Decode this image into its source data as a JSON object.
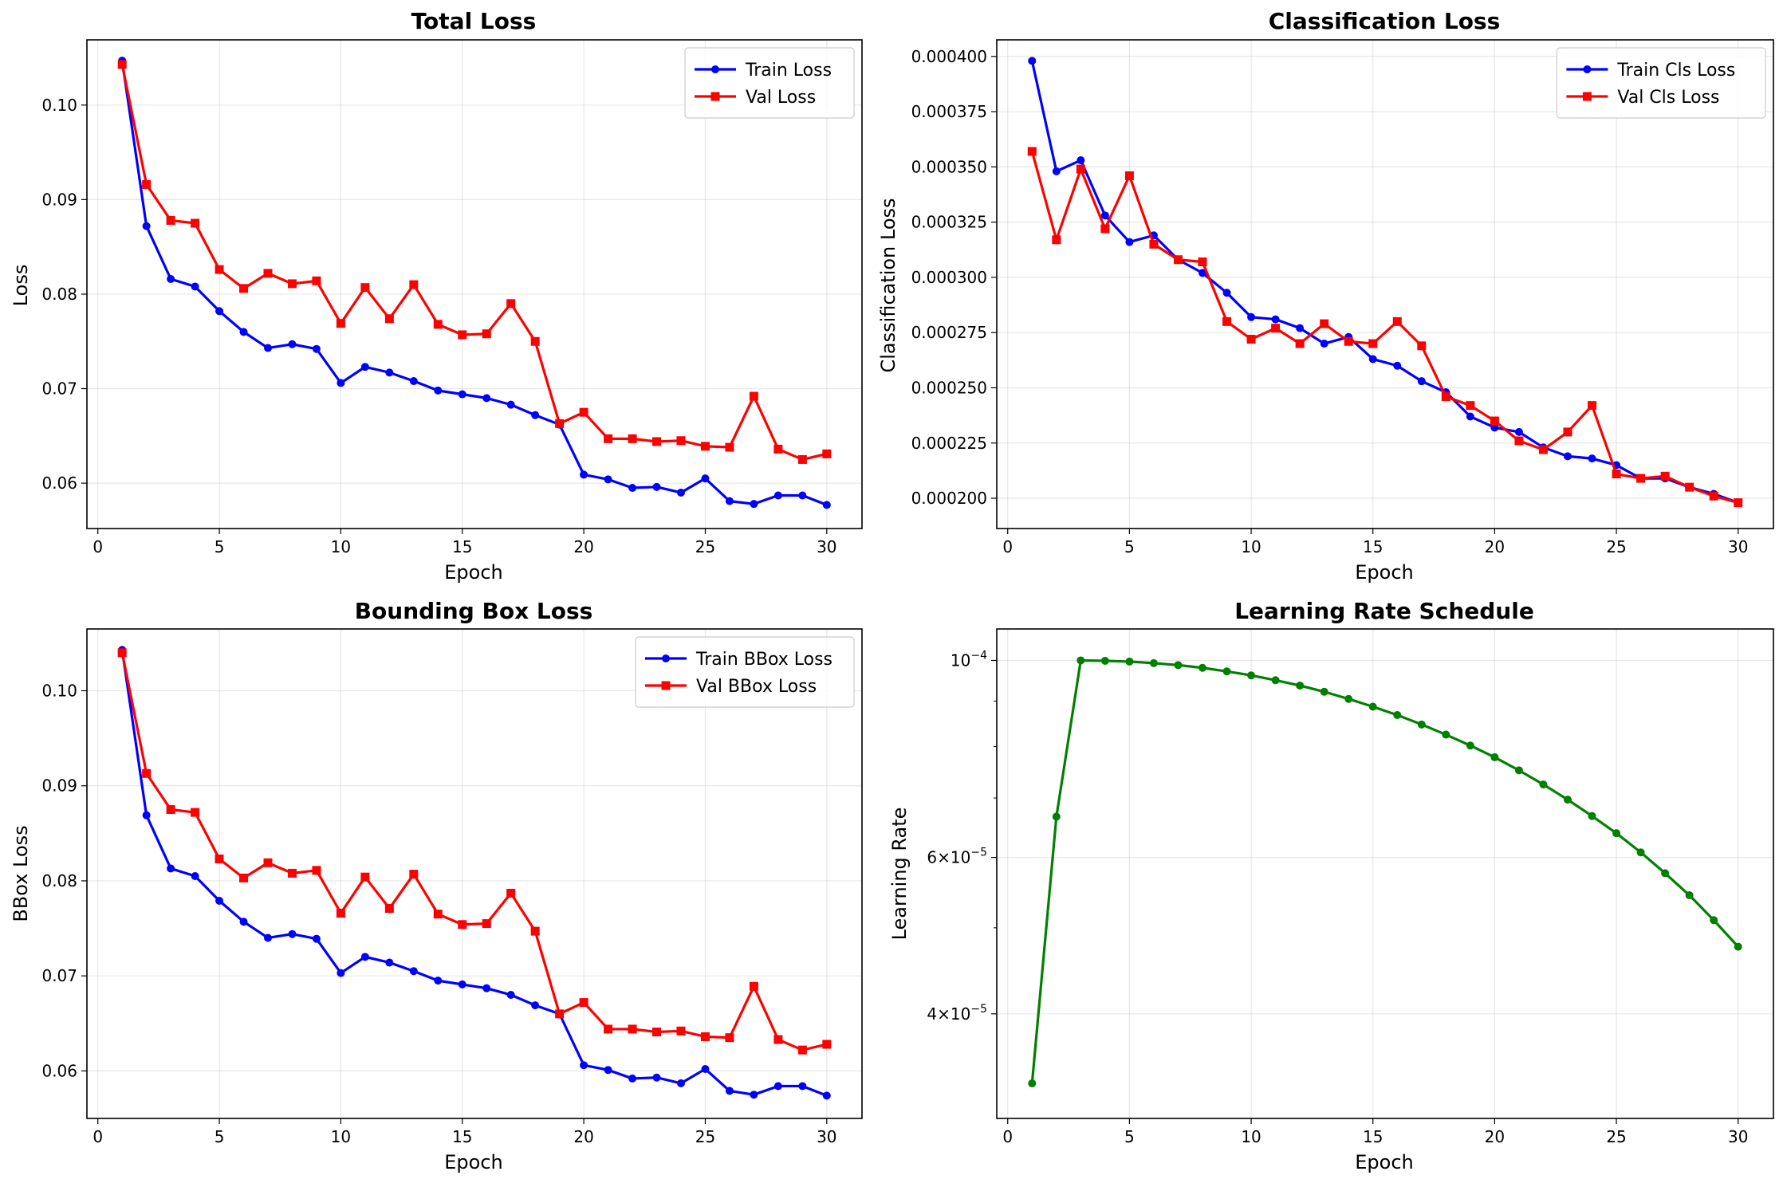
{
  "figure": {
    "background": "#ffffff"
  },
  "chart_data": [
    {
      "type": "line",
      "title": "Total Loss",
      "xlabel": "Epoch",
      "ylabel": "Loss",
      "xlim": [
        -0.45,
        31.45
      ],
      "ylim": [
        0.0552,
        0.1069
      ],
      "xticks": [
        0,
        5,
        10,
        15,
        20,
        25,
        30
      ],
      "yticks": [
        0.06,
        0.07,
        0.08,
        0.09,
        0.1
      ],
      "ytick_labels": [
        "0.06",
        "0.07",
        "0.08",
        "0.09",
        "0.10"
      ],
      "grid": true,
      "legend": "top-right",
      "x": [
        1,
        2,
        3,
        4,
        5,
        6,
        7,
        8,
        9,
        10,
        11,
        12,
        13,
        14,
        15,
        16,
        17,
        18,
        19,
        20,
        21,
        22,
        23,
        24,
        25,
        26,
        27,
        28,
        29,
        30
      ],
      "series": [
        {
          "name": "Train Loss",
          "color": "#0000ff",
          "marker": "circle",
          "values": [
            0.1047,
            0.0872,
            0.0816,
            0.0808,
            0.0782,
            0.076,
            0.0743,
            0.0747,
            0.0742,
            0.0706,
            0.0723,
            0.0717,
            0.0708,
            0.0698,
            0.0694,
            0.069,
            0.0683,
            0.0672,
            0.0662,
            0.0609,
            0.0604,
            0.0595,
            0.0596,
            0.059,
            0.0605,
            0.0581,
            0.0578,
            0.0587,
            0.0587,
            0.0577
          ]
        },
        {
          "name": "Val Loss",
          "color": "#ff0000",
          "marker": "square",
          "values": [
            0.1043,
            0.0916,
            0.0878,
            0.0875,
            0.0826,
            0.0806,
            0.0822,
            0.0811,
            0.0814,
            0.0769,
            0.0807,
            0.0774,
            0.081,
            0.0768,
            0.0757,
            0.0758,
            0.079,
            0.075,
            0.0663,
            0.0675,
            0.0647,
            0.0647,
            0.0644,
            0.0645,
            0.0639,
            0.0638,
            0.0692,
            0.0636,
            0.0625,
            0.0631
          ]
        }
      ]
    },
    {
      "type": "line",
      "title": "Classification Loss",
      "xlabel": "Epoch",
      "ylabel": "Classification Loss",
      "xlim": [
        -0.45,
        31.45
      ],
      "ylim": [
        0.0001863,
        0.0004075
      ],
      "xticks": [
        0,
        5,
        10,
        15,
        20,
        25,
        30
      ],
      "yticks": [
        0.0002,
        0.000225,
        0.00025,
        0.000275,
        0.0003,
        0.000325,
        0.00035,
        0.000375,
        0.0004
      ],
      "ytick_labels": [
        "0.000200",
        "0.000225",
        "0.000250",
        "0.000275",
        "0.000300",
        "0.000325",
        "0.000350",
        "0.000375",
        "0.000400"
      ],
      "grid": true,
      "legend": "top-right",
      "x": [
        1,
        2,
        3,
        4,
        5,
        6,
        7,
        8,
        9,
        10,
        11,
        12,
        13,
        14,
        15,
        16,
        17,
        18,
        19,
        20,
        21,
        22,
        23,
        24,
        25,
        26,
        27,
        28,
        29,
        30
      ],
      "series": [
        {
          "name": "Train Cls Loss",
          "color": "#0000ff",
          "marker": "circle",
          "values": [
            0.000398,
            0.000348,
            0.000353,
            0.000328,
            0.000316,
            0.000319,
            0.000308,
            0.000302,
            0.000293,
            0.000282,
            0.000281,
            0.000277,
            0.00027,
            0.000273,
            0.000263,
            0.00026,
            0.000253,
            0.000248,
            0.000237,
            0.000232,
            0.00023,
            0.000223,
            0.000219,
            0.000218,
            0.000215,
            0.000209,
            0.000209,
            0.000205,
            0.000202,
            0.000198
          ]
        },
        {
          "name": "Val Cls Loss",
          "color": "#ff0000",
          "marker": "square",
          "values": [
            0.000357,
            0.000317,
            0.000349,
            0.000322,
            0.000346,
            0.000315,
            0.000308,
            0.000307,
            0.00028,
            0.000272,
            0.000277,
            0.00027,
            0.000279,
            0.000271,
            0.00027,
            0.00028,
            0.000269,
            0.000246,
            0.000242,
            0.000235,
            0.000226,
            0.000222,
            0.00023,
            0.000242,
            0.000211,
            0.000209,
            0.00021,
            0.000205,
            0.000201,
            0.000198
          ]
        }
      ]
    },
    {
      "type": "line",
      "title": "Bounding Box Loss",
      "xlabel": "Epoch",
      "ylabel": "BBox Loss",
      "xlim": [
        -0.45,
        31.45
      ],
      "ylim": [
        0.055,
        0.1065
      ],
      "xticks": [
        0,
        5,
        10,
        15,
        20,
        25,
        30
      ],
      "yticks": [
        0.06,
        0.07,
        0.08,
        0.09,
        0.1
      ],
      "ytick_labels": [
        "0.06",
        "0.07",
        "0.08",
        "0.09",
        "0.10"
      ],
      "grid": true,
      "legend": "top-right",
      "x": [
        1,
        2,
        3,
        4,
        5,
        6,
        7,
        8,
        9,
        10,
        11,
        12,
        13,
        14,
        15,
        16,
        17,
        18,
        19,
        20,
        21,
        22,
        23,
        24,
        25,
        26,
        27,
        28,
        29,
        30
      ],
      "series": [
        {
          "name": "Train BBox Loss",
          "color": "#0000ff",
          "marker": "circle",
          "values": [
            0.1043,
            0.0869,
            0.0813,
            0.0805,
            0.0779,
            0.0757,
            0.074,
            0.0744,
            0.0739,
            0.0703,
            0.072,
            0.0714,
            0.0705,
            0.0695,
            0.0691,
            0.0687,
            0.068,
            0.0669,
            0.066,
            0.0606,
            0.0601,
            0.0592,
            0.0593,
            0.0587,
            0.0602,
            0.0579,
            0.0575,
            0.0584,
            0.0584,
            0.0574
          ]
        },
        {
          "name": "Val BBox Loss",
          "color": "#ff0000",
          "marker": "square",
          "values": [
            0.104,
            0.0913,
            0.0875,
            0.0872,
            0.0823,
            0.0803,
            0.0819,
            0.0808,
            0.0811,
            0.0766,
            0.0804,
            0.0771,
            0.0807,
            0.0765,
            0.0754,
            0.0755,
            0.0787,
            0.0747,
            0.066,
            0.0672,
            0.0644,
            0.0644,
            0.0641,
            0.0642,
            0.0636,
            0.0635,
            0.0689,
            0.0633,
            0.0622,
            0.0628
          ]
        }
      ]
    },
    {
      "type": "line",
      "title": "Learning Rate Schedule",
      "xlabel": "Epoch",
      "ylabel": "Learning Rate",
      "yscale": "log",
      "xlim": [
        -0.45,
        31.45
      ],
      "ylim": [
        3.05e-05,
        0.0001085
      ],
      "xticks": [
        0,
        5,
        10,
        15,
        20,
        25,
        30
      ],
      "yticks": [
        4e-05,
        6e-05,
        0.0001
      ],
      "ytick_labels": [
        [
          "4",
          "−5"
        ],
        [
          "6",
          "−5"
        ],
        [
          "",
          "−4"
        ]
      ],
      "yminor": [
        3e-05,
        5e-05,
        7e-05,
        8e-05,
        9e-05
      ],
      "grid": true,
      "x": [
        1,
        2,
        3,
        4,
        5,
        6,
        7,
        8,
        9,
        10,
        11,
        12,
        13,
        14,
        15,
        16,
        17,
        18,
        19,
        20,
        21,
        22,
        23,
        24,
        25,
        26,
        27,
        28,
        29,
        30
      ],
      "series": [
        {
          "color": "#008000",
          "marker": "circle",
          "values": [
            3.34e-05,
            6.67e-05,
            0.0001,
            9.99e-05,
            9.97e-05,
            9.93e-05,
            9.88e-05,
            9.81e-05,
            9.72e-05,
            9.62e-05,
            9.5e-05,
            9.37e-05,
            9.22e-05,
            9.05e-05,
            8.87e-05,
            8.68e-05,
            8.47e-05,
            8.25e-05,
            8.02e-05,
            7.78e-05,
            7.52e-05,
            7.25e-05,
            6.97e-05,
            6.68e-05,
            6.39e-05,
            6.08e-05,
            5.76e-05,
            5.44e-05,
            5.1e-05,
            4.76e-05
          ]
        }
      ]
    }
  ]
}
